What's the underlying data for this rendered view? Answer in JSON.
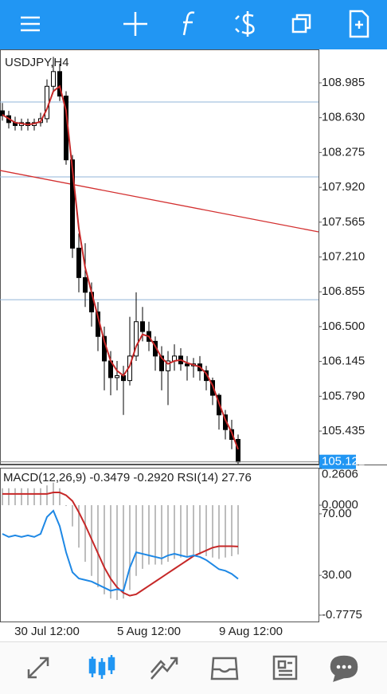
{
  "chart_data": [
    {
      "type": "candlestick",
      "title": "USDJPY,H4",
      "categories": [
        null,
        null,
        null,
        null,
        null,
        null,
        null,
        "30 Jul 12:00",
        null,
        null,
        null,
        null,
        null,
        null,
        null,
        null,
        null,
        null,
        null,
        null,
        null,
        null,
        null,
        "5 Aug 12:00",
        null,
        null,
        null,
        null,
        null,
        null,
        null,
        null,
        null,
        null,
        null,
        null,
        null,
        null,
        null,
        "9 Aug 12:00"
      ],
      "open": [
        108.7,
        108.65,
        108.58,
        108.55,
        108.58,
        108.55,
        108.58,
        108.62,
        108.95,
        109.1,
        108.85,
        108.2,
        107.3,
        107.0,
        106.85,
        106.65,
        106.4,
        106.15,
        105.98,
        106.0,
        105.95,
        106.2,
        106.55,
        106.45,
        106.35,
        106.2,
        106.05,
        106.15,
        106.2,
        106.12,
        106.1,
        106.12,
        106.05,
        105.95,
        105.8,
        105.6,
        105.45,
        105.35,
        null,
        null
      ],
      "high": [
        108.78,
        108.7,
        108.64,
        108.62,
        108.62,
        108.62,
        108.68,
        109.02,
        109.25,
        109.18,
        108.9,
        108.25,
        107.45,
        107.35,
        106.95,
        106.75,
        106.5,
        106.25,
        106.15,
        106.1,
        106.6,
        106.85,
        106.7,
        106.55,
        106.4,
        106.3,
        106.25,
        106.32,
        106.28,
        106.2,
        106.18,
        106.2,
        106.1,
        105.98,
        105.82,
        105.65,
        105.55,
        105.4,
        null,
        null
      ],
      "low": [
        108.6,
        108.52,
        108.5,
        108.5,
        108.5,
        108.5,
        108.54,
        108.58,
        108.9,
        108.8,
        108.15,
        107.2,
        106.85,
        106.7,
        106.5,
        106.25,
        105.85,
        105.8,
        105.85,
        105.6,
        105.9,
        106.15,
        106.35,
        106.25,
        106.05,
        105.85,
        105.7,
        106.05,
        106.05,
        105.95,
        105.98,
        105.95,
        105.85,
        105.7,
        105.45,
        105.35,
        105.25,
        105.1,
        null,
        null
      ],
      "close": [
        108.65,
        108.58,
        108.55,
        108.58,
        108.55,
        108.58,
        108.62,
        108.95,
        109.1,
        108.85,
        108.2,
        107.3,
        107.0,
        106.85,
        106.65,
        106.4,
        106.15,
        105.98,
        106.0,
        105.95,
        106.2,
        106.55,
        106.45,
        106.35,
        106.2,
        106.05,
        106.15,
        106.2,
        106.12,
        106.1,
        106.12,
        106.05,
        105.95,
        105.8,
        105.6,
        105.45,
        105.35,
        105.12,
        null,
        null
      ],
      "ma": {
        "color": "#c62828",
        "values": [
          108.66,
          108.62,
          108.58,
          108.57,
          108.56,
          108.57,
          108.59,
          108.72,
          108.9,
          108.95,
          108.7,
          108.1,
          107.5,
          107.1,
          106.85,
          106.6,
          106.35,
          106.15,
          106.05,
          106.0,
          106.1,
          106.3,
          106.42,
          106.4,
          106.3,
          106.18,
          106.12,
          106.15,
          106.16,
          106.13,
          106.11,
          106.09,
          106.02,
          105.9,
          105.72,
          105.55,
          105.42,
          105.25,
          null,
          null
        ]
      },
      "candle_color": "#000000",
      "levels": [
        108.79,
        108.026,
        106.774
      ],
      "level_color": "#90b4d8",
      "trendline": [
        108.092,
        107.466
      ],
      "trend_color": "#d32f2f",
      "last_price": 105.121,
      "last_color": "#2196f3",
      "ylim": [
        105.094,
        109.326
      ],
      "yticks": [
        108.985,
        {
          "value": 108.63,
          "label": "108.630"
        },
        108.275,
        {
          "value": 107.92,
          "label": "107.920"
        },
        107.565,
        {
          "value": 107.21,
          "label": "107.210"
        },
        106.855,
        {
          "value": 106.5,
          "label": "106.500"
        },
        106.145,
        {
          "value": 105.79,
          "label": "105.790"
        },
        105.435
      ]
    },
    {
      "type": "macd",
      "title": "MACD(12,26,9) -0.3479 -0.2920 RSI(14) 27.76",
      "series": [
        {
          "color": "#bdbdbd",
          "values": [
            0.12,
            0.12,
            0.12,
            0.12,
            0.12,
            0.12,
            0.12,
            0.14,
            0.16,
            0.12,
            0.0,
            -0.15,
            -0.3,
            -0.4,
            -0.5,
            -0.58,
            -0.63,
            -0.66,
            -0.67,
            -0.66,
            -0.6,
            -0.5,
            -0.45,
            -0.42,
            -0.42,
            -0.42,
            -0.4,
            -0.38,
            -0.37,
            -0.36,
            -0.35,
            -0.35,
            -0.36,
            -0.37,
            -0.38,
            -0.37,
            -0.36,
            -0.3479,
            null,
            null
          ]
        },
        {
          "color": "#c62828",
          "values": [
            0.08,
            0.08,
            0.08,
            0.08,
            0.08,
            0.08,
            0.08,
            0.08,
            0.09,
            0.09,
            0.07,
            0.03,
            -0.05,
            -0.14,
            -0.24,
            -0.34,
            -0.44,
            -0.52,
            -0.58,
            -0.62,
            -0.64,
            -0.63,
            -0.6,
            -0.57,
            -0.54,
            -0.51,
            -0.48,
            -0.45,
            -0.42,
            -0.39,
            -0.36,
            -0.34,
            -0.32,
            -0.3,
            -0.29,
            -0.29,
            -0.29,
            -0.292,
            null,
            null
          ]
        },
        {
          "color": "#1e88e5",
          "axis": "y2",
          "values": [
            57,
            55,
            56,
            55,
            56,
            55,
            57,
            68,
            72,
            62,
            45,
            32,
            28,
            27,
            26,
            24,
            22,
            20,
            21,
            20,
            35,
            45,
            44,
            43,
            42,
            41,
            43,
            44,
            43,
            42,
            43,
            42,
            40,
            37,
            34,
            33,
            31,
            27.76,
            null,
            null
          ]
        }
      ],
      "ylim": [
        -0.8225,
        0.265
      ],
      "yticks": [
        0.2606,
        {
          "value": 0,
          "label": "0.0000"
        },
        -0.7775
      ],
      "y2lim": [
        0,
        100
      ],
      "y2ticks": [
        {
          "value": 70,
          "label": "70.00"
        },
        {
          "value": 30,
          "label": "30.00"
        }
      ]
    }
  ]
}
